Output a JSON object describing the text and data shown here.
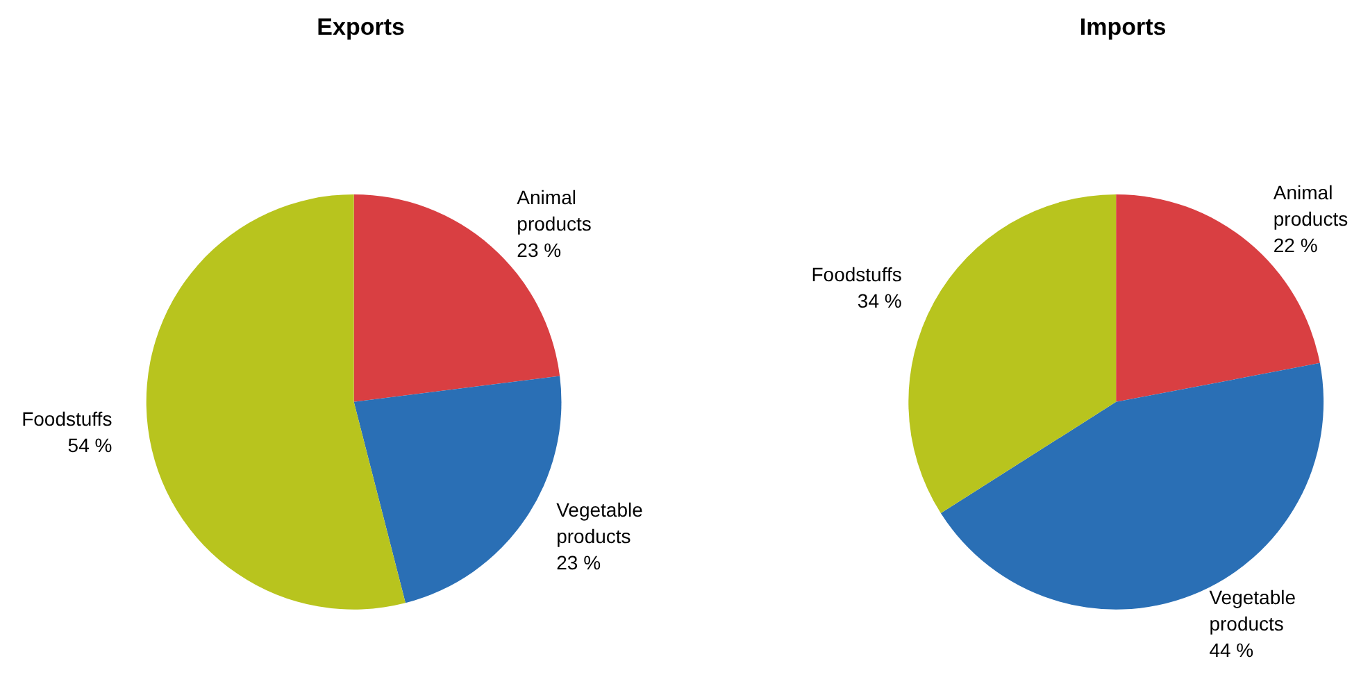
{
  "chart_data": [
    {
      "type": "pie",
      "title": "Exports",
      "categories": [
        "Animal products",
        "Vegetable products",
        "Foodstuffs"
      ],
      "values": [
        23,
        23,
        54
      ],
      "value_labels": [
        "23 %",
        "23 %",
        "54 %"
      ],
      "colors": [
        "#d93f42",
        "#2a6fb5",
        "#b8c41e"
      ],
      "legend": false
    },
    {
      "type": "pie",
      "title": "Imports",
      "categories": [
        "Animal products",
        "Vegetable products",
        "Foodstuffs"
      ],
      "values": [
        22,
        44,
        34
      ],
      "value_labels": [
        "22 %",
        "44 %",
        "34 %"
      ],
      "colors": [
        "#d93f42",
        "#2a6fb5",
        "#b8c41e"
      ],
      "legend": false
    }
  ]
}
